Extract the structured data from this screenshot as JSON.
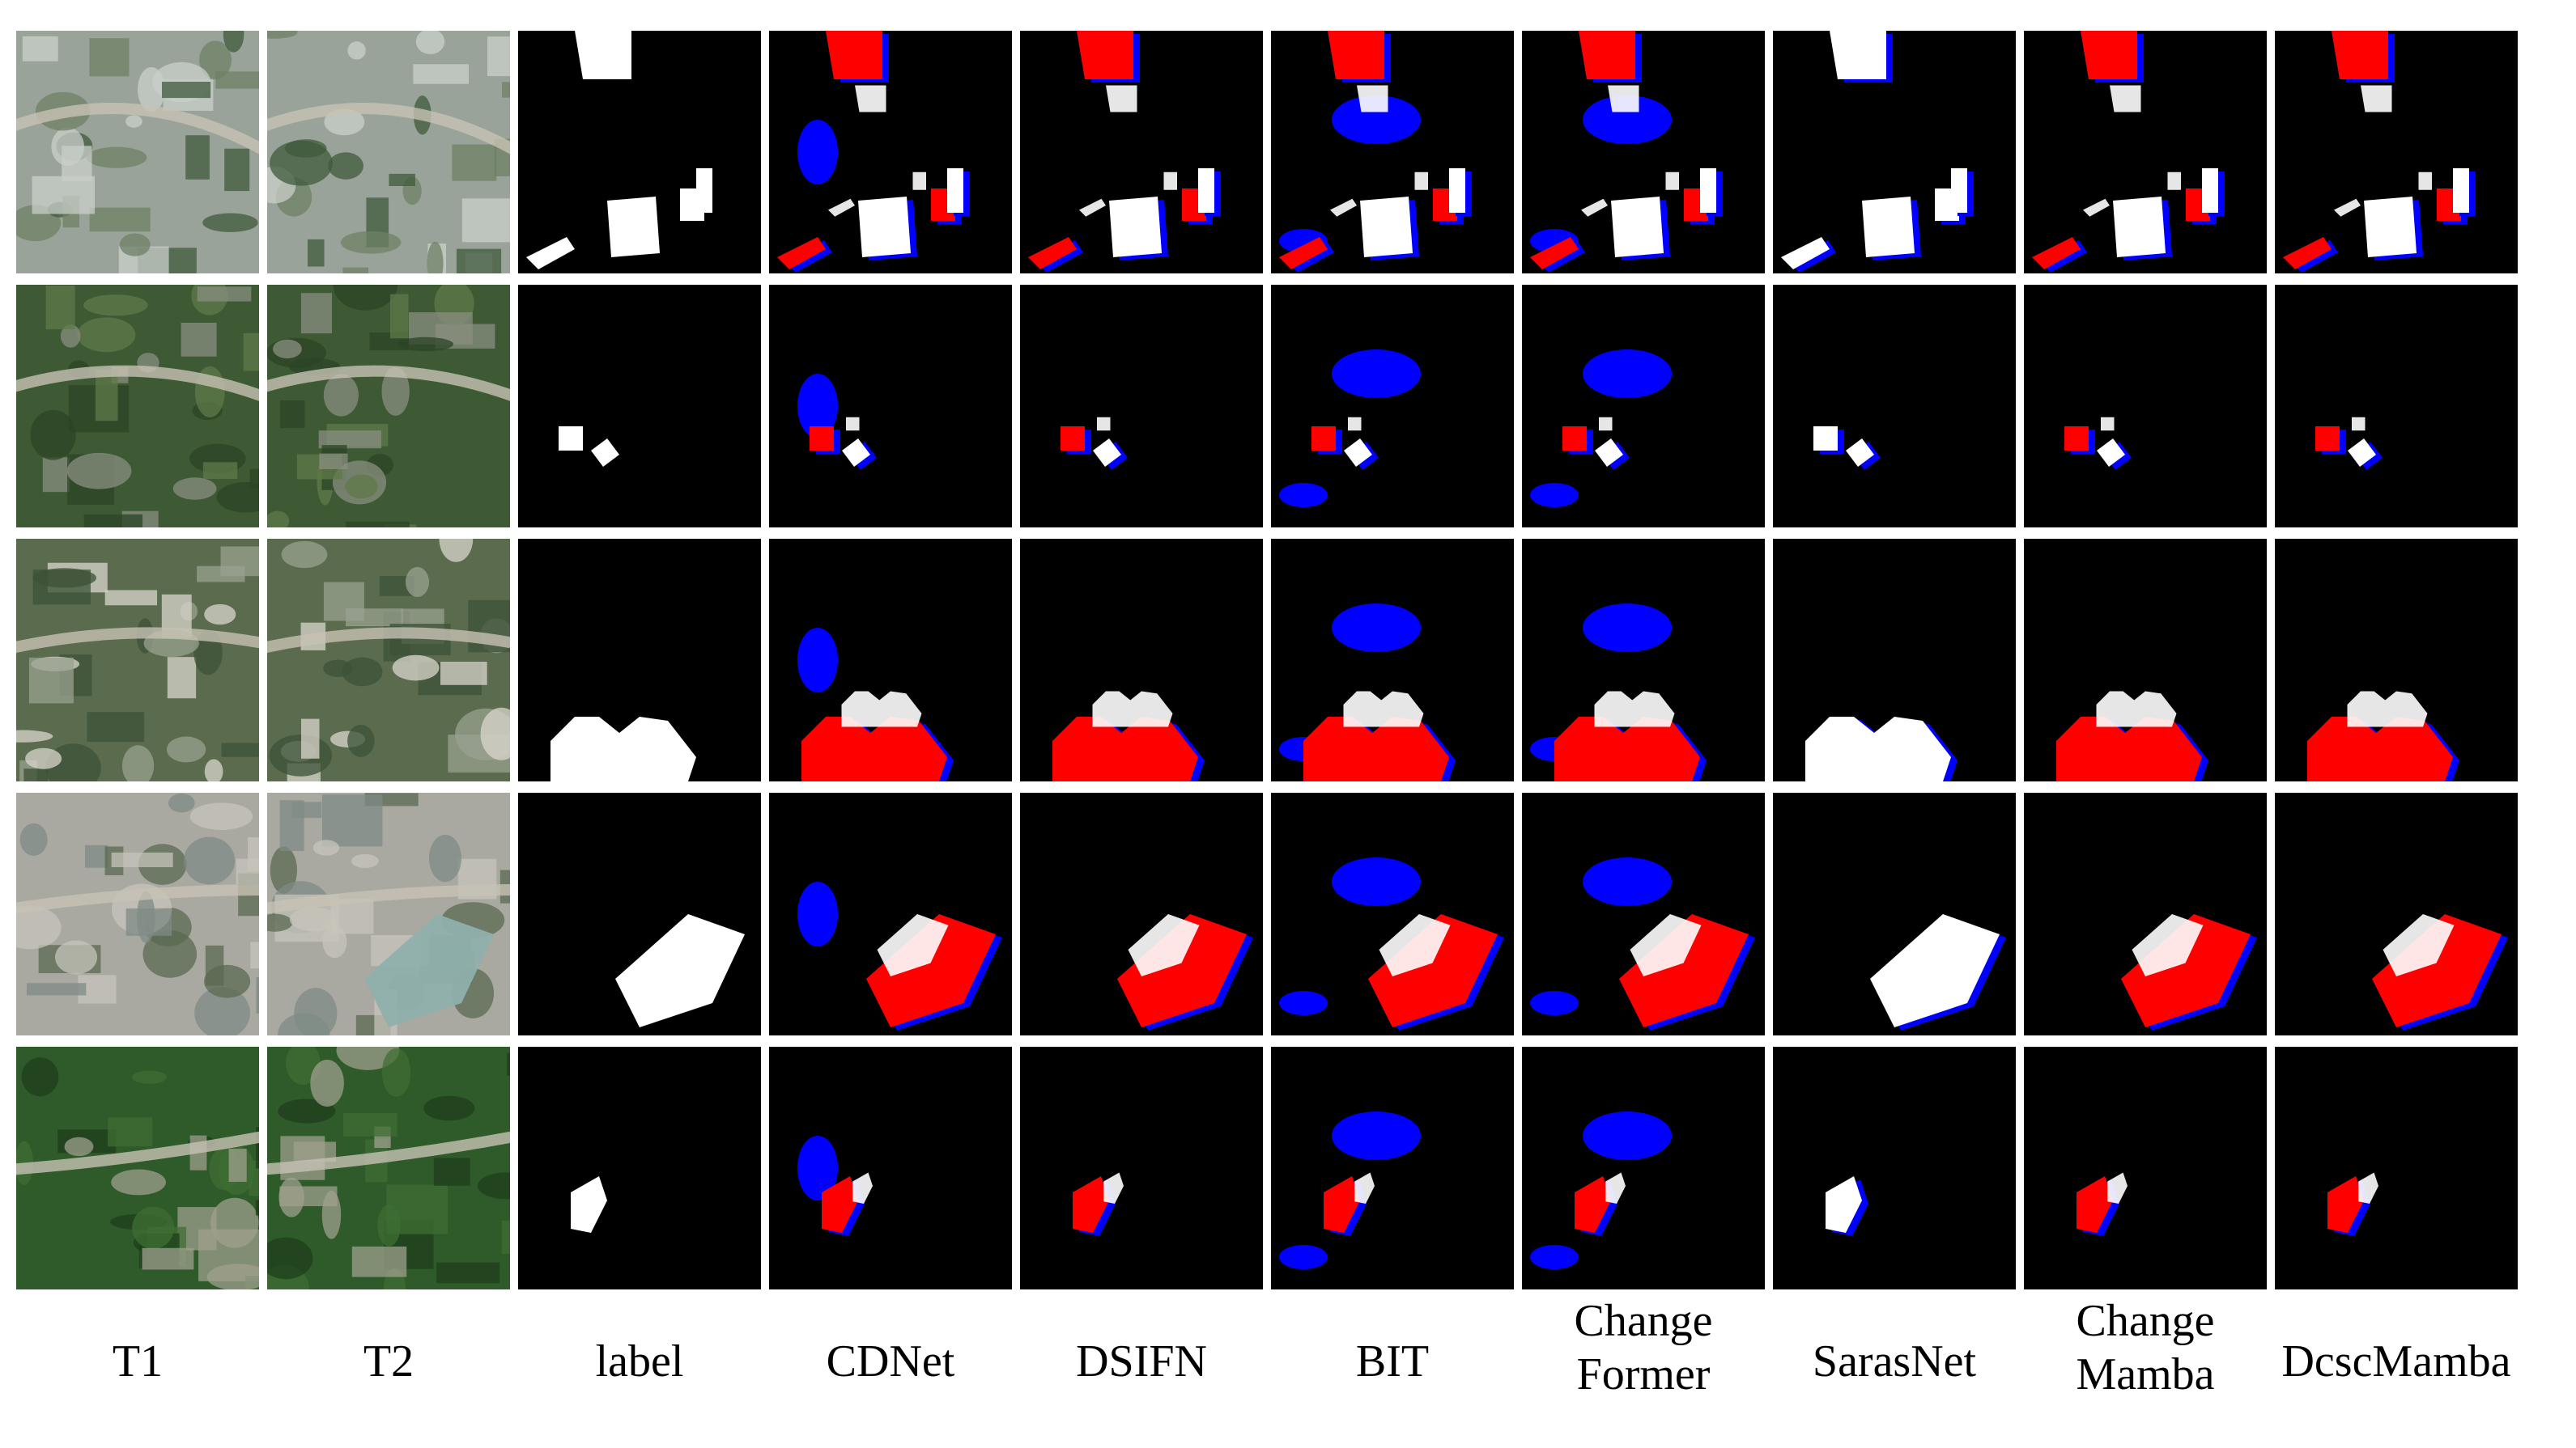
{
  "figure": {
    "columns": [
      {
        "key": "t1",
        "lines": [
          "T1"
        ]
      },
      {
        "key": "t2",
        "lines": [
          "T2"
        ]
      },
      {
        "key": "label",
        "lines": [
          "label"
        ]
      },
      {
        "key": "cdnet",
        "lines": [
          "CDNet"
        ]
      },
      {
        "key": "dsifn",
        "lines": [
          "DSIFN"
        ]
      },
      {
        "key": "bit",
        "lines": [
          "BIT"
        ]
      },
      {
        "key": "changeformer",
        "lines": [
          "Change",
          "Former"
        ]
      },
      {
        "key": "sarasnet",
        "lines": [
          "SarasNet"
        ]
      },
      {
        "key": "changemamba",
        "lines": [
          "Change",
          "Mamba"
        ]
      },
      {
        "key": "dcscmamba",
        "lines": [
          "DcscMamba"
        ]
      }
    ],
    "rows": 5,
    "colors": {
      "background": "#000000",
      "true_positive": "#ffffff",
      "false_negative": "#ff0000",
      "false_positive": "#0000ff",
      "separator": "#ffffff"
    }
  }
}
